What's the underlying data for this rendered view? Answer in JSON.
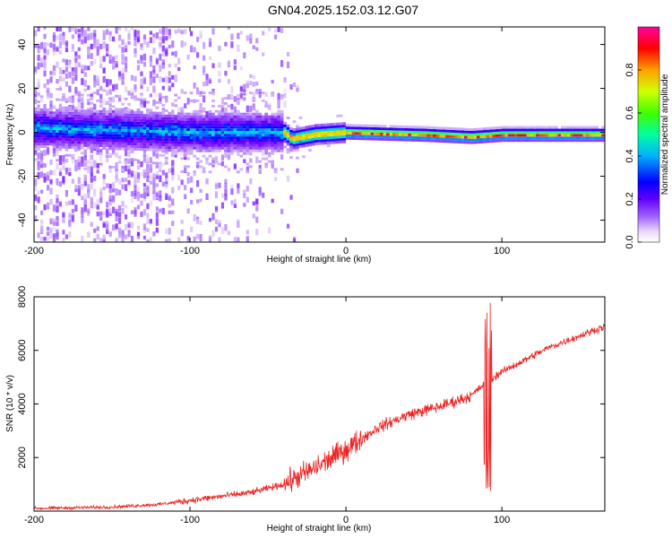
{
  "figure": {
    "title": "GN04.2025.152.03.12.G07"
  },
  "chart_data": [
    {
      "type": "heatmap",
      "xlabel": "Height of straight line (km)",
      "ylabel": "Frequency (Hz)",
      "xlim": [
        -200,
        166
      ],
      "ylim": [
        -50,
        48
      ],
      "xticks": [
        -200,
        -100,
        0,
        100
      ],
      "yticks": [
        -40,
        -20,
        0,
        20,
        40
      ],
      "grid": false,
      "colorbar": {
        "label": "Normalized spectral amplitude",
        "range": [
          0,
          1
        ],
        "ticks": [
          "0.0",
          "0.2",
          "0.4",
          "0.6",
          "0.8"
        ],
        "colormap": [
          "#e8d8f8",
          "#7000ff",
          "#0000ff",
          "#00e0ff",
          "#00ff60",
          "#c0ff00",
          "#ffa000",
          "#ff0000",
          "#ff00a0"
        ]
      },
      "ridge": {
        "description_points": [
          {
            "x": -200,
            "y": 2
          },
          {
            "x": -100,
            "y": 0
          },
          {
            "x": -40,
            "y": 0
          },
          {
            "x": -35,
            "y": -3
          },
          {
            "x": -20,
            "y": -1
          },
          {
            "x": 0,
            "y": 0
          },
          {
            "x": 50,
            "y": -1
          },
          {
            "x": 80,
            "y": -2
          },
          {
            "x": 100,
            "y": -1
          },
          {
            "x": 166,
            "y": -1
          }
        ]
      }
    },
    {
      "type": "line",
      "xlabel": "Height of straight line (km)",
      "ylabel": "SNR (10 * v/v)",
      "xlim": [
        -200,
        166
      ],
      "ylim": [
        0,
        8000
      ],
      "xticks": [
        -200,
        -100,
        0,
        100
      ],
      "yticks": [
        2000,
        4000,
        6000,
        8000
      ],
      "grid": false,
      "series": [
        {
          "color": "#ee2222",
          "trend": [
            {
              "x": -200,
              "y": 100
            },
            {
              "x": -150,
              "y": 150
            },
            {
              "x": -120,
              "y": 250
            },
            {
              "x": -100,
              "y": 400
            },
            {
              "x": -80,
              "y": 550
            },
            {
              "x": -60,
              "y": 700
            },
            {
              "x": -40,
              "y": 1000
            },
            {
              "x": -20,
              "y": 1600
            },
            {
              "x": 0,
              "y": 2300
            },
            {
              "x": 20,
              "y": 3100
            },
            {
              "x": 40,
              "y": 3600
            },
            {
              "x": 60,
              "y": 3900
            },
            {
              "x": 80,
              "y": 4300
            },
            {
              "x": 90,
              "y": 4800
            },
            {
              "x": 100,
              "y": 5200
            },
            {
              "x": 130,
              "y": 6100
            },
            {
              "x": 166,
              "y": 6900
            }
          ],
          "spike": {
            "x": 91,
            "ymin": 700,
            "ymax": 8000
          }
        }
      ]
    }
  ]
}
